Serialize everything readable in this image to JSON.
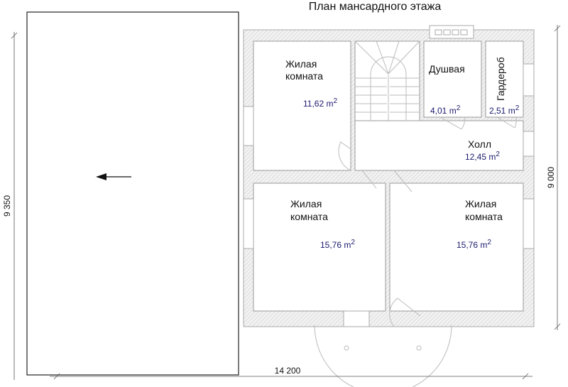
{
  "title": "План мансардного этажа",
  "dimensions": {
    "left": "9 350",
    "right": "9 000",
    "bottom": "14 200"
  },
  "rooms": [
    {
      "name_line1": "Жилая",
      "name_line2": "комната",
      "area": "11,62",
      "unit": "m",
      "exp": "2"
    },
    {
      "name_line1": "Душвая",
      "area": "4,01",
      "unit": "m",
      "exp": "2"
    },
    {
      "name_line1": "Гардероб",
      "area": "2,51",
      "unit": "m",
      "exp": "2"
    },
    {
      "name_line1": "Холл",
      "area": "12,45",
      "unit": "m",
      "exp": "2"
    },
    {
      "name_line1": "Жилая",
      "name_line2": "комната",
      "area": "15,76",
      "unit": "m",
      "exp": "2"
    },
    {
      "name_line1": "Жилая",
      "name_line2": "комната",
      "area": "15,76",
      "unit": "m",
      "exp": "2"
    }
  ],
  "icons": {
    "direction": "arrow-left-icon"
  },
  "colors": {
    "area_text": "#1a1a6e",
    "wall": "#cccccc"
  }
}
